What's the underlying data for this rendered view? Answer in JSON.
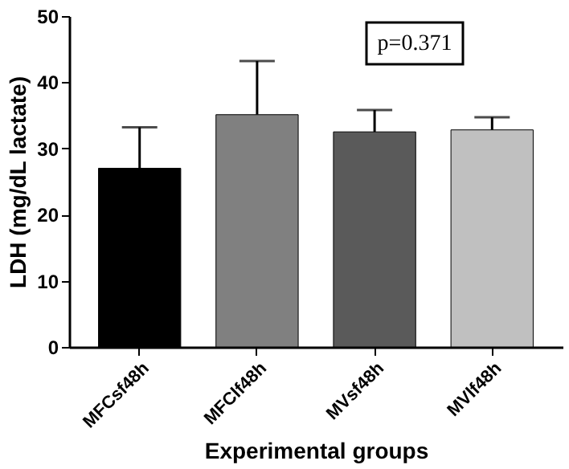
{
  "chart_data": {
    "type": "bar",
    "xlabel": "Experimental groups",
    "ylabel": "LDH (mg/dL lactate)",
    "categories": [
      "MFCsf48h",
      "MFClf48h",
      "MVsf48h",
      "MVlf48h"
    ],
    "values": [
      27.0,
      35.1,
      32.5,
      32.8
    ],
    "colors": [
      "#000000",
      "#808080",
      "#5a5a5a",
      "#c0c0c0"
    ],
    "errors": [
      [
        27.0,
        33.2
      ],
      [
        35.1,
        43.2
      ],
      [
        32.5,
        35.8
      ],
      [
        32.8,
        34.7
      ]
    ],
    "ylim": [
      0,
      50
    ],
    "yticks": [
      0,
      10,
      20,
      30,
      40,
      50
    ],
    "grid": false,
    "annotations": [
      "p=0.371"
    ]
  }
}
